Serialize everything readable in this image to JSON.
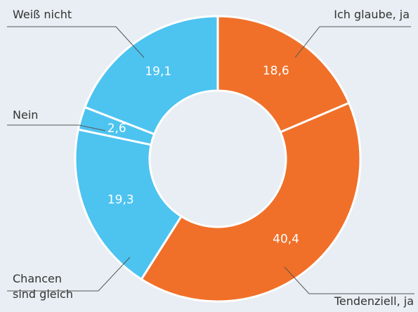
{
  "chart_data": {
    "type": "donut",
    "categories": [
      "Ich glaube, ja",
      "Tendenziell, ja",
      "Chancen sind gleich",
      "Nein",
      "Weiß nicht"
    ],
    "values": [
      18.6,
      40.4,
      19.3,
      2.6,
      19.1
    ],
    "value_labels": [
      "18,6",
      "40,4",
      "19,3",
      "2,6",
      "19,1"
    ],
    "colors": [
      "#f07029",
      "#f07029",
      "#4dc3f0",
      "#4dc3f0",
      "#4dc3f0"
    ]
  }
}
